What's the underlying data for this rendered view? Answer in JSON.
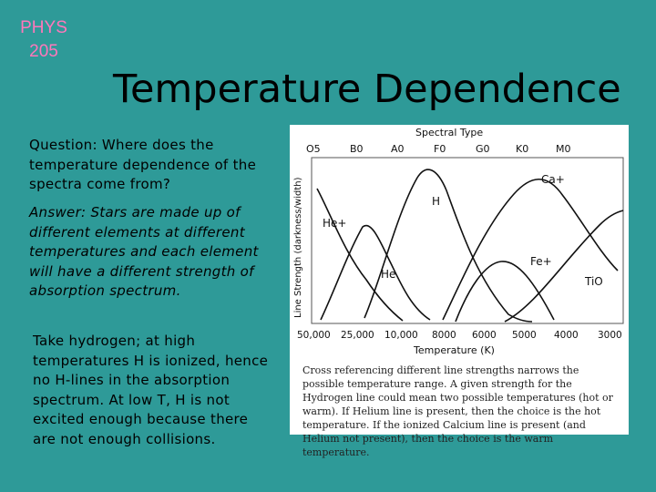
{
  "slide": {
    "course": "PHYS 205",
    "title": "Temperature Dependence",
    "question": "Question: Where does the temperature dependence of the spectra come from?",
    "answer": "Answer: Stars are made up of different elements at different temperatures and each element will have a different strength of absorption spectrum.",
    "example": "Take hydrogen; at high temperatures H is ionized, hence no H-lines in the absorption spectrum. At low T, H is not excited enough because there are not enough collisions."
  },
  "figure": {
    "spectral_type_label": "Spectral Type",
    "y_axis_label": "Line Strength (darkness/width)",
    "x_axis_label": "Temperature (K)",
    "spectral_types": [
      "O5",
      "B0",
      "A0",
      "F0",
      "G0",
      "K0",
      "M0"
    ],
    "temperatures": [
      "50,000",
      "25,000",
      "10,000",
      "8000",
      "6000",
      "5000",
      "4000",
      "3000"
    ],
    "curve_labels": {
      "heplus": "He+",
      "he": "He",
      "h": "H",
      "caplus": "Ca+",
      "feplus": "Fe+",
      "tio": "TiO"
    },
    "caption": "Cross referencing different line strengths narrows the possible temperature range. A given strength for the Hydrogen line could mean two possible temperatures (hot or warm). If Helium line is present, then the choice is the hot temperature. If the ionized Calcium line is present (and Helium not present), then the choice is the warm temperature."
  },
  "colors": {
    "background": "#2e9a98",
    "course_label": "#ff77bb",
    "figure_background": "#ffffff"
  }
}
